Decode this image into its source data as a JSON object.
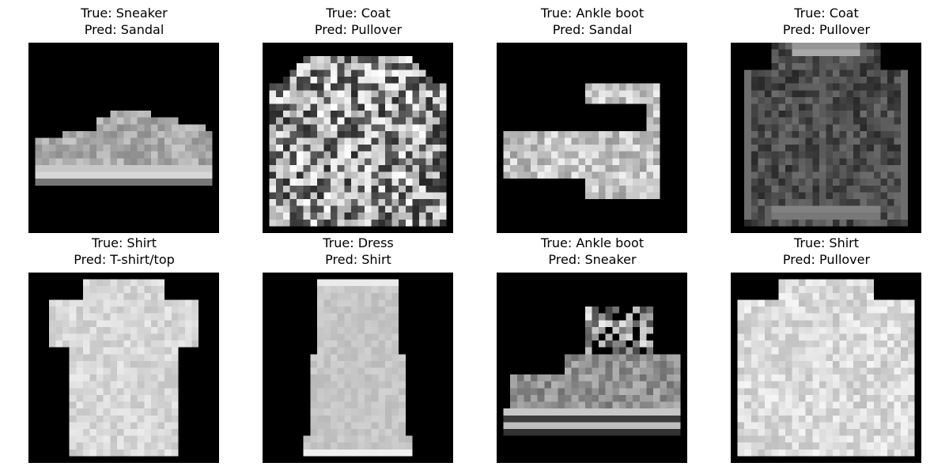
{
  "figure": {
    "panels": [
      {
        "true_label": "True: Sneaker",
        "pred_label": "Pred: Sandal",
        "depicts": "sneaker"
      },
      {
        "true_label": "True: Coat",
        "pred_label": "Pred: Pullover",
        "depicts": "coat-patterned"
      },
      {
        "true_label": "True: Ankle boot",
        "pred_label": "Pred: Sandal",
        "depicts": "heeled-boot"
      },
      {
        "true_label": "True: Coat",
        "pred_label": "Pred: Pullover",
        "depicts": "coat-dark"
      },
      {
        "true_label": "True: Shirt",
        "pred_label": "Pred: T-shirt/top",
        "depicts": "shirt-short-sleeve"
      },
      {
        "true_label": "True: Dress",
        "pred_label": "Pred: Shirt",
        "depicts": "dress"
      },
      {
        "true_label": "True: Ankle boot",
        "pred_label": "Pred: Sneaker",
        "depicts": "boot-highlighted"
      },
      {
        "true_label": "True: Shirt",
        "pred_label": "Pred: Pullover",
        "depicts": "shirt-long-sleeve"
      }
    ]
  },
  "colors": {
    "background": "#ffffff",
    "image_background": "#000000",
    "text": "#000000"
  }
}
